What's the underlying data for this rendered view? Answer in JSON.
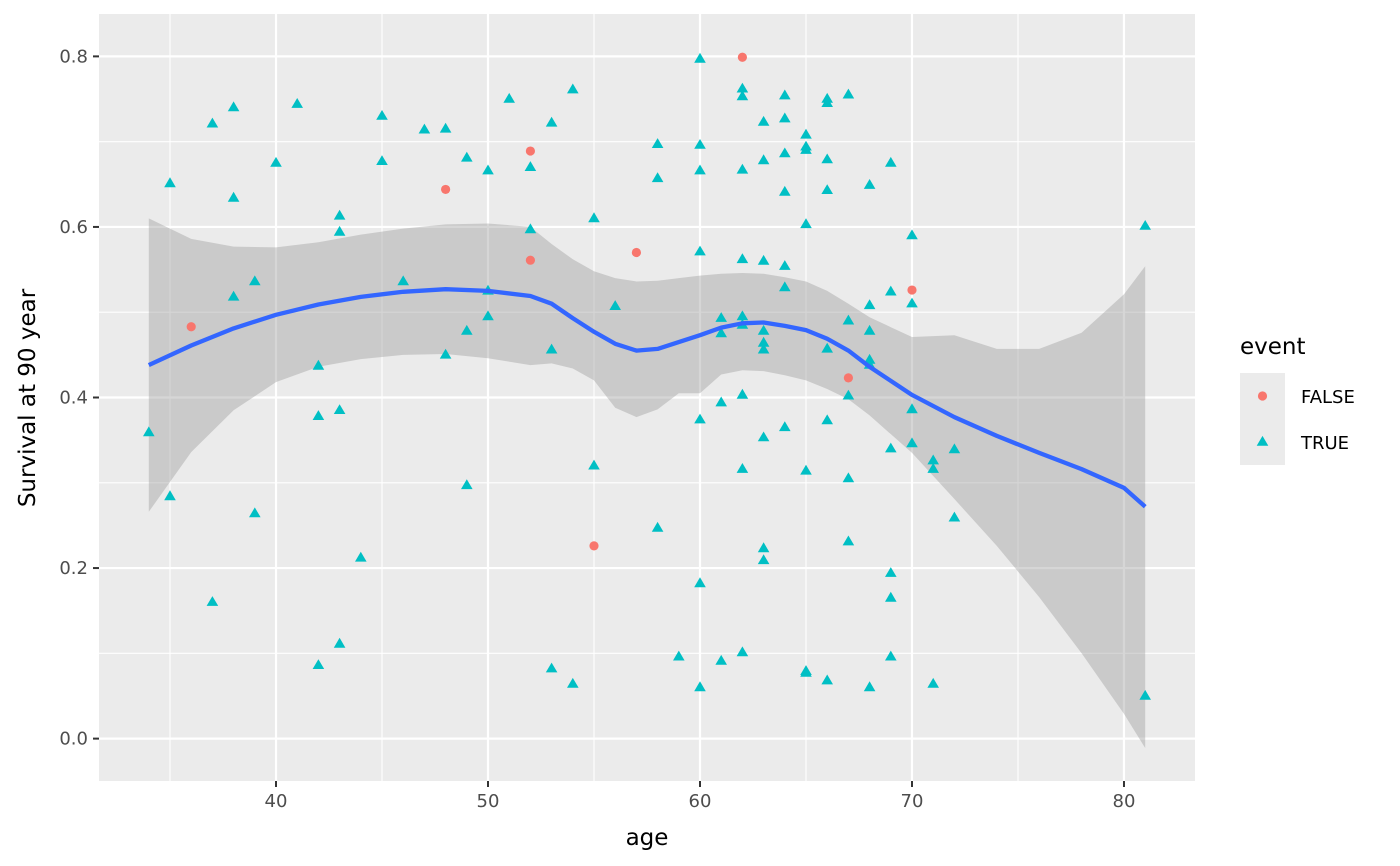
{
  "chart_data": {
    "type": "scatter",
    "xlabel": "age",
    "ylabel": "Survival at 90 year",
    "xlim": [
      31.65,
      83.35
    ],
    "ylim": [
      -0.0497,
      0.8497
    ],
    "x_ticks": [
      40,
      50,
      60,
      70,
      80
    ],
    "y_ticks": [
      0.0,
      0.2,
      0.4,
      0.6,
      0.8
    ],
    "y_tick_labels": [
      "0.0",
      "0.2",
      "0.4",
      "0.6",
      "0.8"
    ],
    "grid": true,
    "legend": {
      "title": "event",
      "position": "right"
    },
    "colors": {
      "FALSE": "#F8766D",
      "TRUE": "#00BFC4",
      "smooth": "#3366FF",
      "ribbon": "#999999",
      "panel": "#EBEBEB",
      "grid": "#FFFFFF"
    },
    "series": [
      {
        "name": "FALSE",
        "marker": "circle",
        "points": [
          [
            36,
            0.483
          ],
          [
            48,
            0.644
          ],
          [
            52,
            0.689
          ],
          [
            52,
            0.561
          ],
          [
            55,
            0.226
          ],
          [
            57,
            0.57
          ],
          [
            62,
            0.799
          ],
          [
            67,
            0.423
          ],
          [
            70,
            0.526
          ]
        ]
      },
      {
        "name": "TRUE",
        "marker": "triangle",
        "points": [
          [
            34,
            0.359
          ],
          [
            35,
            0.651
          ],
          [
            35,
            0.284
          ],
          [
            37,
            0.721
          ],
          [
            37,
            0.16
          ],
          [
            38,
            0.74
          ],
          [
            38,
            0.634
          ],
          [
            38,
            0.518
          ],
          [
            39,
            0.536
          ],
          [
            39,
            0.264
          ],
          [
            40,
            0.675
          ],
          [
            41,
            0.744
          ],
          [
            42,
            0.437
          ],
          [
            42,
            0.378
          ],
          [
            42,
            0.086
          ],
          [
            43,
            0.613
          ],
          [
            43,
            0.594
          ],
          [
            43,
            0.385
          ],
          [
            43,
            0.111
          ],
          [
            44,
            0.212
          ],
          [
            45,
            0.73
          ],
          [
            45,
            0.677
          ],
          [
            46,
            0.536
          ],
          [
            47,
            0.714
          ],
          [
            48,
            0.715
          ],
          [
            48,
            0.45
          ],
          [
            49,
            0.681
          ],
          [
            49,
            0.478
          ],
          [
            49,
            0.297
          ],
          [
            50,
            0.666
          ],
          [
            50,
            0.525
          ],
          [
            50,
            0.495
          ],
          [
            51,
            0.75
          ],
          [
            52,
            0.67
          ],
          [
            52,
            0.597
          ],
          [
            53,
            0.722
          ],
          [
            53,
            0.456
          ],
          [
            53,
            0.082
          ],
          [
            54,
            0.761
          ],
          [
            54,
            0.064
          ],
          [
            55,
            0.61
          ],
          [
            55,
            0.32
          ],
          [
            56,
            0.507
          ],
          [
            58,
            0.697
          ],
          [
            58,
            0.657
          ],
          [
            58,
            0.247
          ],
          [
            59,
            0.096
          ],
          [
            60,
            0.797
          ],
          [
            60,
            0.696
          ],
          [
            60,
            0.666
          ],
          [
            60,
            0.571
          ],
          [
            60,
            0.374
          ],
          [
            60,
            0.182
          ],
          [
            60,
            0.06
          ],
          [
            61,
            0.493
          ],
          [
            61,
            0.475
          ],
          [
            61,
            0.394
          ],
          [
            61,
            0.091
          ],
          [
            62,
            0.762
          ],
          [
            62,
            0.753
          ],
          [
            62,
            0.667
          ],
          [
            62,
            0.562
          ],
          [
            62,
            0.495
          ],
          [
            62,
            0.485
          ],
          [
            62,
            0.403
          ],
          [
            62,
            0.316
          ],
          [
            62,
            0.101
          ],
          [
            63,
            0.723
          ],
          [
            63,
            0.678
          ],
          [
            63,
            0.56
          ],
          [
            63,
            0.478
          ],
          [
            63,
            0.464
          ],
          [
            63,
            0.456
          ],
          [
            63,
            0.353
          ],
          [
            63,
            0.223
          ],
          [
            63,
            0.209
          ],
          [
            64,
            0.754
          ],
          [
            64,
            0.727
          ],
          [
            64,
            0.686
          ],
          [
            64,
            0.641
          ],
          [
            64,
            0.554
          ],
          [
            64,
            0.529
          ],
          [
            64,
            0.365
          ],
          [
            65,
            0.708
          ],
          [
            65,
            0.694
          ],
          [
            65,
            0.69
          ],
          [
            65,
            0.603
          ],
          [
            65,
            0.314
          ],
          [
            65,
            0.079
          ],
          [
            65,
            0.077
          ],
          [
            66,
            0.75
          ],
          [
            66,
            0.745
          ],
          [
            66,
            0.679
          ],
          [
            66,
            0.643
          ],
          [
            66,
            0.457
          ],
          [
            66,
            0.373
          ],
          [
            66,
            0.068
          ],
          [
            67,
            0.755
          ],
          [
            67,
            0.49
          ],
          [
            67,
            0.402
          ],
          [
            67,
            0.305
          ],
          [
            67,
            0.231
          ],
          [
            68,
            0.649
          ],
          [
            68,
            0.508
          ],
          [
            68,
            0.478
          ],
          [
            68,
            0.444
          ],
          [
            68,
            0.438
          ],
          [
            68,
            0.06
          ],
          [
            69,
            0.675
          ],
          [
            69,
            0.524
          ],
          [
            69,
            0.34
          ],
          [
            69,
            0.194
          ],
          [
            69,
            0.165
          ],
          [
            69,
            0.096
          ],
          [
            70,
            0.59
          ],
          [
            70,
            0.51
          ],
          [
            70,
            0.386
          ],
          [
            70,
            0.346
          ],
          [
            71,
            0.326
          ],
          [
            71,
            0.316
          ],
          [
            71,
            0.064
          ],
          [
            72,
            0.339
          ],
          [
            72,
            0.259
          ],
          [
            81,
            0.601
          ],
          [
            81,
            0.05
          ]
        ]
      }
    ],
    "smooth": [
      {
        "x": 34,
        "y": 0.438,
        "lo": 0.266,
        "hi": 0.61
      },
      {
        "x": 36,
        "y": 0.461,
        "lo": 0.336,
        "hi": 0.586
      },
      {
        "x": 38,
        "y": 0.481,
        "lo": 0.385,
        "hi": 0.577
      },
      {
        "x": 40,
        "y": 0.497,
        "lo": 0.418,
        "hi": 0.576
      },
      {
        "x": 42,
        "y": 0.509,
        "lo": 0.436,
        "hi": 0.582
      },
      {
        "x": 44,
        "y": 0.518,
        "lo": 0.445,
        "hi": 0.591
      },
      {
        "x": 46,
        "y": 0.524,
        "lo": 0.45,
        "hi": 0.598
      },
      {
        "x": 48,
        "y": 0.527,
        "lo": 0.451,
        "hi": 0.603
      },
      {
        "x": 50,
        "y": 0.525,
        "lo": 0.446,
        "hi": 0.604
      },
      {
        "x": 52,
        "y": 0.519,
        "lo": 0.438,
        "hi": 0.6
      },
      {
        "x": 53,
        "y": 0.51,
        "lo": 0.44,
        "hi": 0.58
      },
      {
        "x": 54,
        "y": 0.493,
        "lo": 0.434,
        "hi": 0.562
      },
      {
        "x": 55,
        "y": 0.477,
        "lo": 0.42,
        "hi": 0.548
      },
      {
        "x": 56,
        "y": 0.463,
        "lo": 0.388,
        "hi": 0.54
      },
      {
        "x": 57,
        "y": 0.455,
        "lo": 0.377,
        "hi": 0.536
      },
      {
        "x": 58,
        "y": 0.457,
        "lo": 0.386,
        "hi": 0.537
      },
      {
        "x": 59,
        "y": 0.465,
        "lo": 0.405,
        "hi": 0.54
      },
      {
        "x": 60,
        "y": 0.473,
        "lo": 0.405,
        "hi": 0.543
      },
      {
        "x": 61,
        "y": 0.482,
        "lo": 0.427,
        "hi": 0.545
      },
      {
        "x": 62,
        "y": 0.487,
        "lo": 0.432,
        "hi": 0.546
      },
      {
        "x": 63,
        "y": 0.488,
        "lo": 0.431,
        "hi": 0.545
      },
      {
        "x": 64,
        "y": 0.484,
        "lo": 0.426,
        "hi": 0.541
      },
      {
        "x": 65,
        "y": 0.479,
        "lo": 0.42,
        "hi": 0.536
      },
      {
        "x": 66,
        "y": 0.469,
        "lo": 0.41,
        "hi": 0.525
      },
      {
        "x": 67,
        "y": 0.455,
        "lo": 0.398,
        "hi": 0.51
      },
      {
        "x": 68,
        "y": 0.436,
        "lo": 0.379,
        "hi": 0.494
      },
      {
        "x": 70,
        "y": 0.403,
        "lo": 0.335,
        "hi": 0.471
      },
      {
        "x": 72,
        "y": 0.377,
        "lo": 0.281,
        "hi": 0.473
      },
      {
        "x": 74,
        "y": 0.355,
        "lo": 0.226,
        "hi": 0.457
      },
      {
        "x": 76,
        "y": 0.335,
        "lo": 0.166,
        "hi": 0.457
      },
      {
        "x": 78,
        "y": 0.316,
        "lo": 0.1,
        "hi": 0.476
      },
      {
        "x": 80,
        "y": 0.294,
        "lo": 0.029,
        "hi": 0.521
      },
      {
        "x": 81,
        "y": 0.272,
        "lo": -0.011,
        "hi": 0.554
      }
    ]
  }
}
